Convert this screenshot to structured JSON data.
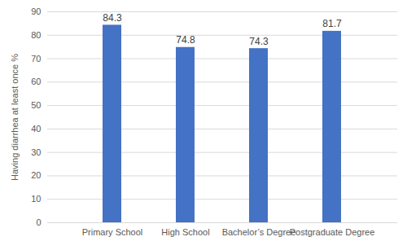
{
  "chart_data": {
    "type": "bar",
    "categories": [
      "Primary School",
      "High School",
      "Bachelor’s Degree",
      "Postgraduate Degree"
    ],
    "values": [
      84.3,
      74.8,
      74.3,
      81.7
    ],
    "color": "#4472c4",
    "ylabel": "Having diarrhea at least once %",
    "ylim": [
      0,
      90
    ],
    "yticks": [
      0,
      10,
      20,
      30,
      40,
      50,
      60,
      70,
      80,
      90
    ],
    "grid": true,
    "data_labels": true
  }
}
